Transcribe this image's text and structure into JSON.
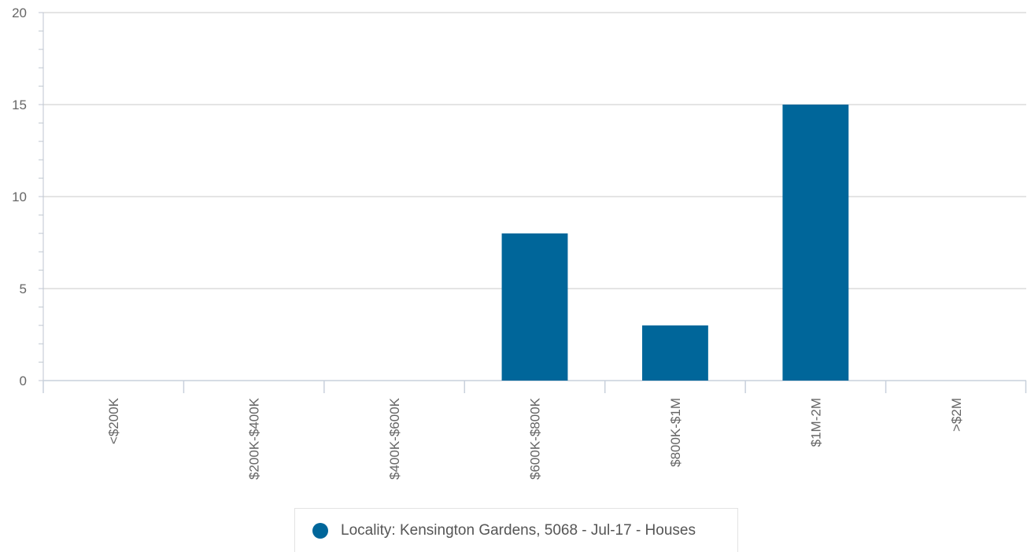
{
  "chart_data": {
    "type": "bar",
    "categories": [
      "<$200K",
      "$200K-$400K",
      "$400K-$600K",
      "$600K-$800K",
      "$800K-$1M",
      "$1M-2M",
      ">$2M"
    ],
    "series": [
      {
        "name": "Locality: Kensington Gardens, 5068 - Jul-17 - Houses",
        "values": [
          0,
          0,
          0,
          8,
          3,
          15,
          0
        ],
        "color": "#00669a"
      }
    ],
    "ylim": [
      0,
      20
    ],
    "yticks": [
      0,
      5,
      10,
      15,
      20
    ],
    "minor_ticks_per_major": 5,
    "grid": true,
    "legend_position": "bottom-center"
  }
}
